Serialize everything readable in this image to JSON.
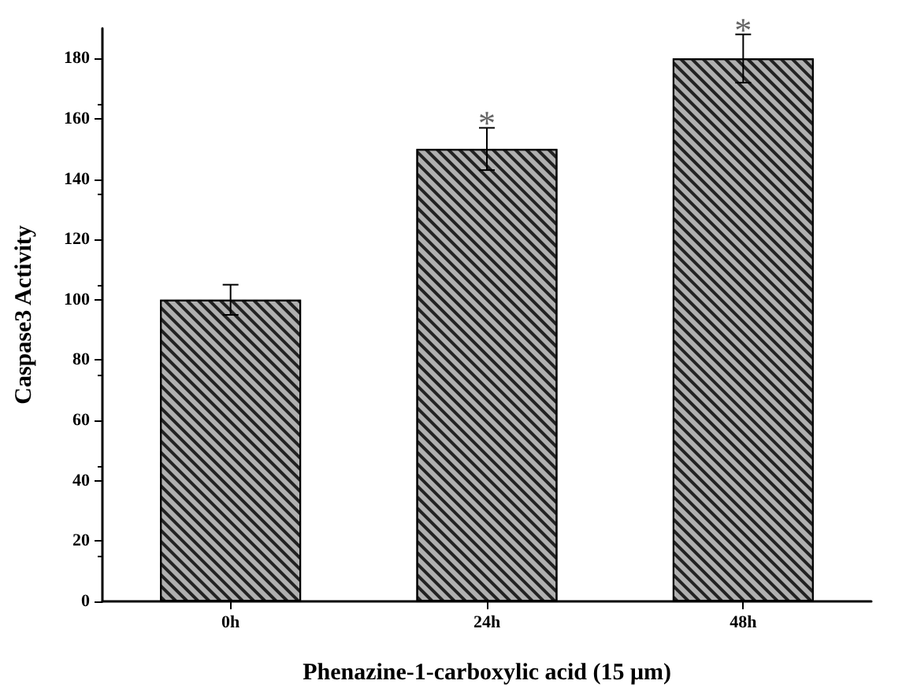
{
  "chart_data": {
    "type": "bar",
    "xlabel": "Phenazine-1-carboxylic acid (15 μm)",
    "ylabel": "Caspase3 Activity",
    "categories": [
      "0h",
      "24h",
      "48h"
    ],
    "values": [
      100,
      150,
      180
    ],
    "errors": [
      5,
      7,
      8
    ],
    "color": "#b0b0b0",
    "ylim": [
      0,
      190
    ],
    "yticks": [
      0,
      20,
      40,
      60,
      80,
      100,
      120,
      140,
      160,
      180
    ],
    "annotations": [
      "*",
      "*"
    ],
    "grid": false
  }
}
